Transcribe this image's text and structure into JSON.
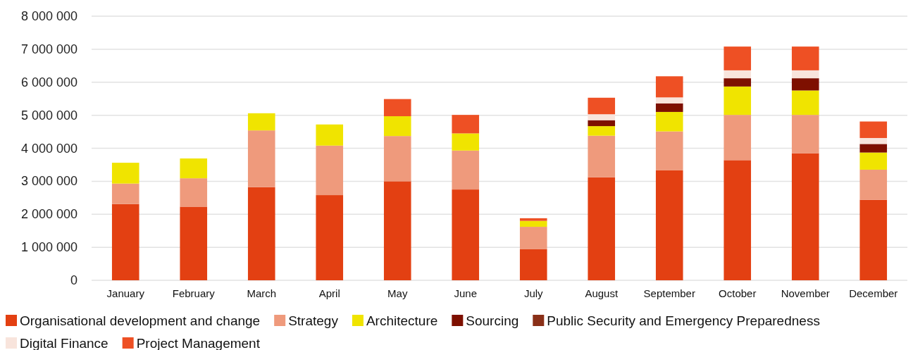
{
  "chart_data": {
    "type": "bar",
    "stacked": true,
    "categories": [
      "January",
      "February",
      "March",
      "April",
      "May",
      "June",
      "July",
      "August",
      "September",
      "October",
      "November",
      "December"
    ],
    "series": [
      {
        "name": "Organisational development and change",
        "color": "#e34012",
        "values": [
          2310000,
          2230000,
          2820000,
          2580000,
          3000000,
          2750000,
          940000,
          3120000,
          3330000,
          3640000,
          3850000,
          2440000
        ]
      },
      {
        "name": "Strategy",
        "color": "#ef9a7c",
        "values": [
          620000,
          860000,
          1720000,
          1500000,
          1370000,
          1180000,
          680000,
          1260000,
          1180000,
          1370000,
          1160000,
          910000
        ]
      },
      {
        "name": "Architecture",
        "color": "#f0e400",
        "values": [
          630000,
          600000,
          520000,
          640000,
          600000,
          520000,
          180000,
          290000,
          590000,
          860000,
          740000,
          520000
        ]
      },
      {
        "name": "Sourcing",
        "color": "#7e1000",
        "values": [
          null,
          null,
          null,
          null,
          null,
          null,
          null,
          180000,
          260000,
          250000,
          370000,
          260000
        ]
      },
      {
        "name": "Public Security and Emergency Preparedness",
        "color": "#8a3018",
        "values": [
          null,
          null,
          null,
          null,
          null,
          null,
          null,
          null,
          null,
          null,
          null,
          null
        ]
      },
      {
        "name": "Digital Finance",
        "color": "#f8e4dc",
        "values": [
          null,
          null,
          null,
          null,
          null,
          null,
          null,
          180000,
          180000,
          240000,
          240000,
          180000
        ]
      },
      {
        "name": "Project Management",
        "color": "#ee5024",
        "values": [
          null,
          null,
          null,
          null,
          520000,
          560000,
          80000,
          500000,
          640000,
          720000,
          720000,
          500000
        ]
      }
    ],
    "ylim": [
      0,
      8000000
    ],
    "yticks": [
      {
        "value": 0,
        "label": "0"
      },
      {
        "value": 1000000,
        "label": "1 000 000"
      },
      {
        "value": 2000000,
        "label": "2 000 000"
      },
      {
        "value": 3000000,
        "label": "3 000 000"
      },
      {
        "value": 4000000,
        "label": "4 000 000"
      },
      {
        "value": 5000000,
        "label": "5 000 000"
      },
      {
        "value": 6000000,
        "label": "6 000 000"
      },
      {
        "value": 7000000,
        "label": "7 000 000"
      },
      {
        "value": 8000000,
        "label": "8 000 000"
      }
    ],
    "grid": "y",
    "legend": "bottom"
  }
}
